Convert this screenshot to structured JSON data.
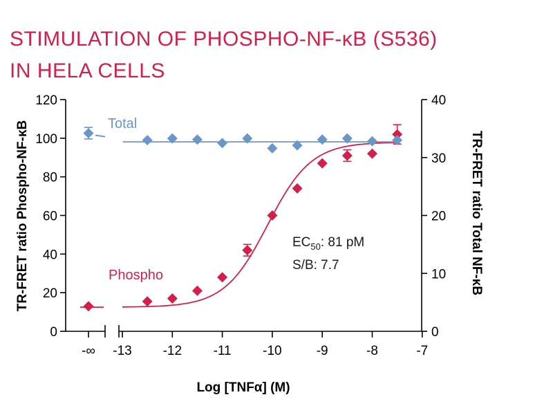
{
  "chart_data": {
    "type": "scatter",
    "title_lines": [
      "STIMULATION OF PHOSPHO-NF-κB (S536)",
      "IN HELA CELLS"
    ],
    "xlabel": "Log [TNFα] (M)",
    "ylabel_left": "TR-FRET ratio Phospho-NF-κB",
    "ylabel_right": "TR-FRET ratio Total NF-κB",
    "x_ticks": [
      {
        "value": "-inf",
        "label": "-∞"
      },
      {
        "value": -13,
        "label": "-13"
      },
      {
        "value": -12,
        "label": "-12"
      },
      {
        "value": -11,
        "label": "-11"
      },
      {
        "value": -10,
        "label": "-10"
      },
      {
        "value": -9,
        "label": "-9"
      },
      {
        "value": -8,
        "label": "-8"
      },
      {
        "value": -7,
        "label": "-7"
      }
    ],
    "ylim_left": [
      0,
      120
    ],
    "yticks_left": [
      0,
      20,
      40,
      60,
      80,
      100,
      120
    ],
    "ylim_right": [
      0,
      40
    ],
    "yticks_right": [
      0,
      10,
      20,
      30,
      40
    ],
    "annotations": {
      "ec50_prefix": "EC",
      "ec50_sub": "50",
      "ec50_value": ": 81 pM",
      "sb": "S/B: 7.7"
    },
    "series": [
      {
        "name": "Phospho",
        "axis": "left",
        "color": "#d41f4a",
        "marker": "diamond",
        "points": [
          {
            "x": "-inf",
            "y": 13
          },
          {
            "x": -12.5,
            "y": 15.5
          },
          {
            "x": -12,
            "y": 17
          },
          {
            "x": -11.5,
            "y": 21
          },
          {
            "x": -11,
            "y": 28
          },
          {
            "x": -10.5,
            "y": 42,
            "err": 3
          },
          {
            "x": -10,
            "y": 60
          },
          {
            "x": -9.5,
            "y": 74
          },
          {
            "x": -9,
            "y": 87
          },
          {
            "x": -8.5,
            "y": 91,
            "err": 3
          },
          {
            "x": -8,
            "y": 92
          },
          {
            "x": -7.5,
            "y": 102,
            "err": 5
          }
        ],
        "fit": {
          "bottom": 12.5,
          "top": 98,
          "log_ec50": -10.09,
          "hill": 1
        }
      },
      {
        "name": "Total",
        "axis": "right",
        "color": "#6b96c8",
        "marker": "diamond",
        "points": [
          {
            "x": "-inf",
            "y": 34.2,
            "err": 1
          },
          {
            "x": -12.5,
            "y": 33.0
          },
          {
            "x": -12,
            "y": 33.3
          },
          {
            "x": -11.5,
            "y": 33.1
          },
          {
            "x": -11,
            "y": 32.5
          },
          {
            "x": -10.5,
            "y": 33.3
          },
          {
            "x": -10,
            "y": 31.6
          },
          {
            "x": -9.5,
            "y": 32.1
          },
          {
            "x": -9,
            "y": 33.1
          },
          {
            "x": -8.5,
            "y": 33.3
          },
          {
            "x": -8,
            "y": 32.8
          },
          {
            "x": -7.5,
            "y": 33.0
          }
        ],
        "fit_level": 32.7
      }
    ]
  }
}
